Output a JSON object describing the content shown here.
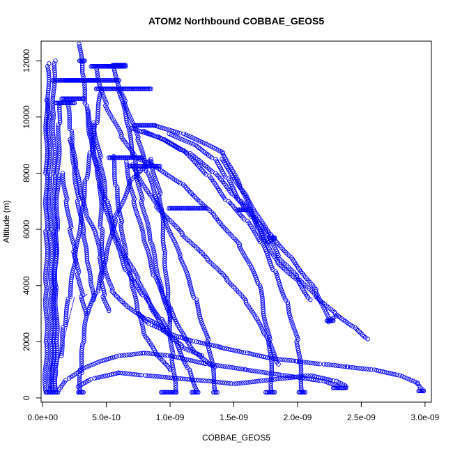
{
  "chart_data": {
    "type": "scatter",
    "title": "ATOM2 Northbound COBBAE_GEOS5",
    "xlabel": "COBBAE_GEOS5",
    "ylabel": "Altitude (m)",
    "xlim": [
      -1.2e-11,
      3.05e-09
    ],
    "ylim": [
      -150,
      12700
    ],
    "x_ticks": [
      0,
      5e-10,
      1e-09,
      1.5e-09,
      2e-09,
      2.5e-09,
      3e-09
    ],
    "x_tick_labels": [
      "0.0e+00",
      "5.0e-10",
      "1.0e-09",
      "1.5e-09",
      "2.0e-09",
      "2.5e-09",
      "3.0e-09"
    ],
    "y_ticks": [
      0,
      2000,
      4000,
      6000,
      8000,
      10000,
      12000
    ],
    "y_tick_labels": [
      "0",
      "2000",
      "4000",
      "6000",
      "8000",
      "10000",
      "12000"
    ],
    "grid": false,
    "marker": "open-circle",
    "color": "#0000ff",
    "series": [
      {
        "x": [
          6e-11,
          6.5e-11,
          7e-11,
          6e-11,
          5e-11,
          5e-11,
          4e-11,
          5e-11
        ],
        "y": [
          200,
          2000,
          4000,
          6000,
          8000,
          10000,
          11800,
          11900
        ]
      },
      {
        "x": [
          1e-10,
          1.1e-10,
          1.05e-10,
          9.5e-11,
          9e-11,
          8.5e-11,
          9e-11,
          1e-10
        ],
        "y": [
          200,
          2000,
          4000,
          6000,
          8000,
          10000,
          11900,
          12000
        ]
      },
      {
        "x": [
          7.5e-11,
          8.5e-11,
          9.5e-11,
          1.1e-10,
          1.2e-10,
          1.3e-10,
          1.4e-10
        ],
        "y": [
          200,
          2000,
          4000,
          6000,
          8000,
          9800,
          10500
        ]
      },
      {
        "x": [
          2.2e-11,
          2.8e-11,
          3e-11,
          3e-11,
          3e-11,
          3.2e-11
        ],
        "y": [
          200,
          2000,
          4000,
          6000,
          8000,
          10600
        ]
      },
      {
        "x": [
          1.4e-10,
          1.7e-10,
          2.1e-10,
          2.6e-10,
          3e-10,
          3.4e-10,
          3.8e-10,
          4.2e-10,
          4.6e-10
        ],
        "y": [
          1500,
          2600,
          3600,
          5000,
          6500,
          7800,
          8800,
          9800,
          10900
        ]
      },
      {
        "x": [
          2.9e-10,
          3e-10,
          3.2e-10,
          3.5e-10,
          4.3e-10,
          5e-10,
          5.7e-10,
          7e-10,
          8.5e-10,
          9.2e-10,
          9.6e-10,
          9.8e-10,
          1.02e-09,
          1.04e-09
        ],
        "y": [
          200,
          900,
          2000,
          3000,
          3800,
          5000,
          6400,
          7800,
          8500,
          7200,
          5200,
          3500,
          1500,
          200
        ]
      },
      {
        "x": [
          2.9e-10,
          3.1e-10,
          3.4e-10,
          3.8e-10,
          4.3e-10,
          4.8e-10,
          5.5e-10,
          6.6e-10,
          8e-10,
          9.3e-10,
          1.04e-09,
          1.15e-09,
          1.22e-09
        ],
        "y": [
          12600,
          11600,
          10400,
          9200,
          8100,
          7000,
          5800,
          4500,
          3600,
          2800,
          2000,
          1000,
          200
        ]
      },
      {
        "x": [
          5.5e-10,
          6.5e-10,
          7.5e-10,
          8.2e-10,
          9.5e-10,
          1.08e-09,
          1.2e-09,
          1.3e-09,
          1.36e-09
        ],
        "y": [
          11800,
          10500,
          9200,
          8000,
          6500,
          5000,
          3500,
          2000,
          200
        ]
      },
      {
        "x": [
          4.2e-10,
          5e-10,
          6.2e-10,
          7.2e-10,
          9e-10,
          1.1e-09,
          1.35e-09,
          1.55e-09,
          1.7e-09,
          1.78e-09,
          1.8e-09
        ],
        "y": [
          11700,
          10400,
          9300,
          8600,
          8200,
          7600,
          6500,
          5400,
          4000,
          2000,
          200
        ]
      },
      {
        "x": [
          7e-10,
          9e-10,
          1.1e-09,
          1.3e-09,
          1.45e-09,
          1.6e-09,
          1.72e-09,
          1.82e-09,
          1.92e-09,
          2e-09,
          2.04e-09
        ],
        "y": [
          9600,
          9300,
          8800,
          7900,
          7000,
          6300,
          5500,
          4500,
          3400,
          2000,
          200
        ]
      },
      {
        "x": [
          8e-10,
          9.5e-10,
          1.15e-09,
          1.35e-09,
          1.5e-09,
          1.65e-09,
          1.75e-09,
          1.82e-09
        ],
        "y": [
          9500,
          9200,
          8700,
          8000,
          7200,
          6400,
          5500,
          5700
        ]
      },
      {
        "x": [
          8.8e-10,
          1.1e-09,
          1.3e-09,
          1.42e-09,
          1.55e-09,
          1.7e-09,
          1.85e-09,
          2e-09,
          2.1e-09
        ],
        "y": [
          9700,
          9400,
          9000,
          8700,
          7500,
          6000,
          4800,
          4200,
          3500
        ]
      },
      {
        "x": [
          1e-09,
          1.2e-09,
          1.35e-09,
          1.45e-09,
          1.55e-09,
          1.75e-09,
          1.95e-09,
          2.15e-09,
          2.25e-09,
          2.3e-09
        ],
        "y": [
          9400,
          9000,
          8500,
          7800,
          7000,
          6000,
          5000,
          3800,
          2700,
          2900
        ]
      },
      {
        "x": [
          1.4e-09,
          1.6e-09,
          1.75e-09,
          1.85e-09,
          2e-09,
          2.15e-09,
          2.3e-09,
          2.45e-09,
          2.55e-09
        ],
        "y": [
          8500,
          7200,
          6000,
          5000,
          4300,
          3600,
          3000,
          2500,
          2100
        ]
      },
      {
        "x": [
          7.5e-10,
          8.5e-10,
          9.5e-10,
          1.05e-09,
          1.2e-09,
          1.4e-09,
          1.6e-09,
          1.8e-09,
          2e-09,
          2.2e-09,
          2.4e-09,
          2.6e-09,
          2.8e-09,
          2.95e-09,
          2.98e-09
        ],
        "y": [
          3000,
          2600,
          2400,
          2200,
          2000,
          1800,
          1600,
          1400,
          1300,
          1200,
          1100,
          1000,
          800,
          500,
          300
        ]
      },
      {
        "x": [
          7e-10,
          9e-10,
          1.1e-09,
          1.3e-09,
          1.45e-09,
          1.6e-09,
          1.75e-09,
          1.85e-09
        ],
        "y": [
          8300,
          6800,
          5800,
          4900,
          4200,
          3400,
          2200,
          1200
        ]
      },
      {
        "x": [
          6.5e-10,
          7.2e-10,
          8e-10,
          8.8e-10,
          1e-09,
          1.1e-09,
          1.2e-09,
          1.35e-09
        ],
        "y": [
          8400,
          7000,
          5500,
          4300,
          3200,
          2300,
          1600,
          1100
        ]
      },
      {
        "x": [
          5.5e-10,
          5.8e-10,
          6.2e-10,
          6.5e-10,
          7e-10,
          7.5e-10,
          8e-10,
          9e-10,
          1e-09
        ],
        "y": [
          8600,
          7500,
          6200,
          5000,
          4000,
          3000,
          2200,
          1500,
          1000
        ]
      },
      {
        "x": [
          1.3e-10,
          2e-10,
          3e-10,
          4.5e-10,
          6e-10,
          8e-10,
          1e-09,
          1.3e-09,
          1.6e-09,
          1.9e-09,
          2.2e-09,
          2.32e-09
        ],
        "y": [
          300,
          700,
          1000,
          1300,
          1500,
          1600,
          1500,
          1200,
          1000,
          800,
          600,
          400
        ]
      },
      {
        "x": [
          2.8e-10,
          4e-10,
          6e-10,
          8e-10,
          1.05e-09,
          1.3e-09,
          1.5e-09,
          1.7e-09,
          1.9e-09,
          2.1e-09,
          2.3e-09,
          2.38e-09
        ],
        "y": [
          400,
          700,
          900,
          800,
          700,
          600,
          500,
          600,
          700,
          800,
          600,
          400
        ]
      },
      {
        "x": [
          4e-10,
          4.5e-10,
          5e-10,
          6e-10,
          7.5e-10,
          8.5e-10,
          9.5e-10,
          1.1e-09,
          1.25e-09
        ],
        "y": [
          9800,
          8500,
          7000,
          5500,
          4200,
          3200,
          2400,
          1800,
          1500
        ]
      },
      {
        "x": [
          3.5e-10,
          4e-10,
          4.5e-10,
          4.6e-10,
          4.8e-10,
          5.5e-10,
          6.8e-10,
          8.2e-10,
          9.5e-10
        ],
        "y": [
          10200,
          9000,
          7600,
          6000,
          4800,
          3800,
          3200,
          2800,
          2500
        ]
      },
      {
        "x": [
          2.2e-10,
          2.6e-10,
          3e-10,
          3.5e-10,
          4.2e-10,
          4.5e-10,
          4.6e-10,
          4.8e-10,
          5.2e-10
        ],
        "y": [
          9200,
          8200,
          7200,
          6400,
          5800,
          5000,
          4200,
          3600,
          3100
        ]
      },
      {
        "x": [
          6e-10,
          6.6e-10,
          7.2e-10,
          7.8e-10,
          8.5e-10,
          9.3e-10,
          1e-09
        ],
        "y": [
          11000,
          9800,
          8500,
          7000,
          5500,
          4000,
          2800
        ]
      },
      {
        "x": [
          1.9e-10,
          2.2e-10,
          2.5e-10,
          2.8e-10,
          3.2e-10,
          3.5e-10,
          3.8e-10,
          4e-10
        ],
        "y": [
          10600,
          9500,
          8200,
          7000,
          5800,
          4800,
          4000,
          3500
        ]
      },
      {
        "x": [
          1.6e-10,
          1.9e-10,
          2.2e-10,
          2.5e-10,
          2.8e-10,
          3.1e-10,
          3.4e-10
        ],
        "y": [
          8000,
          7000,
          6000,
          5200,
          4400,
          3600,
          3000
        ]
      }
    ],
    "plateaus": [
      {
        "x0": 8e-11,
        "x1": 4.3e-10,
        "y": 11300
      },
      {
        "x0": 1.8e-10,
        "x1": 6e-10,
        "y": 11300
      },
      {
        "x0": 1e-10,
        "x1": 2.5e-10,
        "y": 10500
      },
      {
        "x0": 1.5e-10,
        "x1": 3.2e-10,
        "y": 10650
      },
      {
        "x0": 4e-10,
        "x1": 6.5e-10,
        "y": 11800
      },
      {
        "x0": 3.8e-10,
        "x1": 6.2e-10,
        "y": 11800
      },
      {
        "x0": 5.5e-10,
        "x1": 6.5e-10,
        "y": 11850
      },
      {
        "x0": 4.2e-10,
        "x1": 8.5e-10,
        "y": 11000
      },
      {
        "x0": 2.9e-10,
        "x1": 3.3e-10,
        "y": 12000
      },
      {
        "x0": 5.2e-10,
        "x1": 7.8e-10,
        "y": 8550
      },
      {
        "x0": 6.8e-10,
        "x1": 9.2e-10,
        "y": 8250
      },
      {
        "x0": 7.2e-10,
        "x1": 8.8e-10,
        "y": 9700
      },
      {
        "x0": 9.9e-10,
        "x1": 1.28e-09,
        "y": 6750
      },
      {
        "x0": 1.53e-09,
        "x1": 1.6e-09,
        "y": 6700
      },
      {
        "x0": 9.3e-10,
        "x1": 1.05e-09,
        "y": 200
      },
      {
        "x0": 1.17e-09,
        "x1": 1.22e-09,
        "y": 200
      },
      {
        "x0": 1.34e-09,
        "x1": 1.37e-09,
        "y": 200
      },
      {
        "x0": 1.75e-09,
        "x1": 1.82e-09,
        "y": 200
      },
      {
        "x0": 2.01e-09,
        "x1": 2.06e-09,
        "y": 200
      },
      {
        "x0": 2.28e-09,
        "x1": 2.38e-09,
        "y": 350
      },
      {
        "x0": 2.95e-09,
        "x1": 2.99e-09,
        "y": 250
      },
      {
        "x0": 2.8e-10,
        "x1": 3.2e-10,
        "y": 200
      },
      {
        "x0": 1.78e-09,
        "x1": 1.82e-09,
        "y": 5700
      },
      {
        "x0": 2.23e-09,
        "x1": 2.28e-09,
        "y": 2750
      },
      {
        "x0": 3e-11,
        "x1": 1.2e-10,
        "y": 200
      }
    ],
    "connectors": [
      {
        "x": [
          2.5e-10,
          1.3e-10,
          4e-11
        ],
        "y": [
          3600,
          1400,
          200
        ]
      },
      {
        "x": [
          1.2e-10,
          1e-10
        ],
        "y": [
          1000,
          200
        ]
      },
      {
        "x": [
          3.5e-10,
          3e-10
        ],
        "y": [
          3700,
          3500
        ]
      }
    ]
  }
}
